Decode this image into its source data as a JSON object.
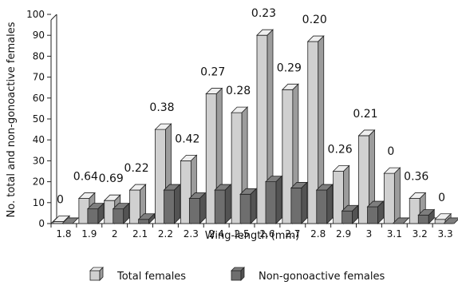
{
  "chart_data": {
    "type": "bar",
    "xlabel": "Wing-length (mm)",
    "ylabel": "No. total and non-gonoactive females",
    "ylim": [
      0,
      100
    ],
    "yticks": [
      0,
      10,
      20,
      30,
      40,
      50,
      60,
      70,
      80,
      90,
      100
    ],
    "categories": [
      "1.8",
      "1.9",
      "2",
      "2.1",
      "2.2",
      "2.3",
      "2.4",
      "2.5",
      "2.6",
      "2.7",
      "2.8",
      "2.9",
      "3",
      "3.1",
      "3.2",
      "3.3"
    ],
    "series": [
      {
        "name": "Total females",
        "color": "#d0d0d0",
        "values": [
          1,
          12,
          11,
          16,
          45,
          30,
          62,
          53,
          90,
          64,
          87,
          25,
          42,
          24,
          12,
          2
        ]
      },
      {
        "name": "Non-gonoactive females",
        "color": "#6e6e6e",
        "values": [
          0,
          7,
          7,
          2,
          16,
          12,
          16,
          14,
          20,
          17,
          16,
          6,
          8,
          0,
          4,
          0
        ]
      }
    ],
    "data_labels": [
      "0",
      "0.64",
      "0.69",
      "0.22",
      "0.38",
      "0.42",
      "0.27",
      "0.28",
      "0.23",
      "0.29",
      "0.20",
      "0.26",
      "0.21",
      "0",
      "0.36",
      "0"
    ],
    "grid": false,
    "legend_position": "bottom",
    "style": "3d-bars"
  }
}
